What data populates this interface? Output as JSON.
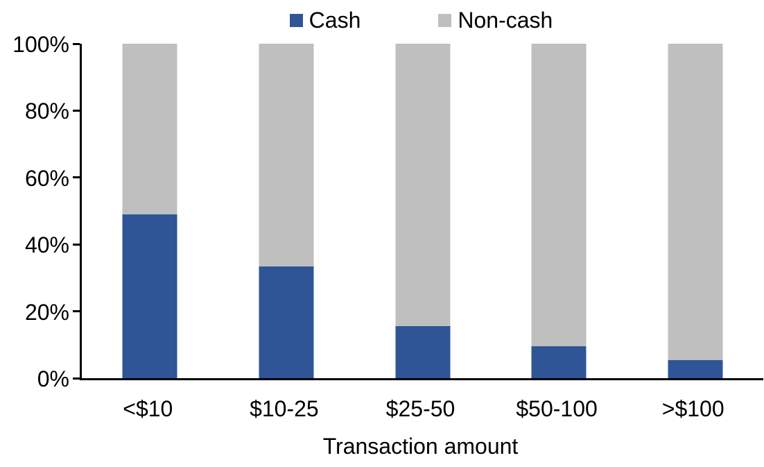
{
  "legend": {
    "items": [
      {
        "label": "Cash",
        "color": "#2F5597"
      },
      {
        "label": "Non-cash",
        "color": "#BFBFBF"
      }
    ]
  },
  "chart_data": {
    "type": "bar",
    "stacked": true,
    "percent_stacked": true,
    "title": "",
    "xlabel": "Transaction amount",
    "ylabel": "",
    "categories": [
      "<$10",
      "$10-25",
      "$25-50",
      "$50-100",
      ">$100"
    ],
    "series": [
      {
        "name": "Cash",
        "color": "#2F5597",
        "values": [
          49,
          33.5,
          15.5,
          9.5,
          5.5
        ]
      },
      {
        "name": "Non-cash",
        "color": "#BFBFBF",
        "values": [
          51,
          66.5,
          84.5,
          90.5,
          94.5
        ]
      }
    ],
    "ylim": [
      0,
      100
    ],
    "yticks": [
      "0%",
      "20%",
      "40%",
      "60%",
      "80%",
      "100%"
    ],
    "grid": false,
    "legend_position": "top",
    "axis_color": "#000000",
    "background_color": "#FFFFFF"
  }
}
